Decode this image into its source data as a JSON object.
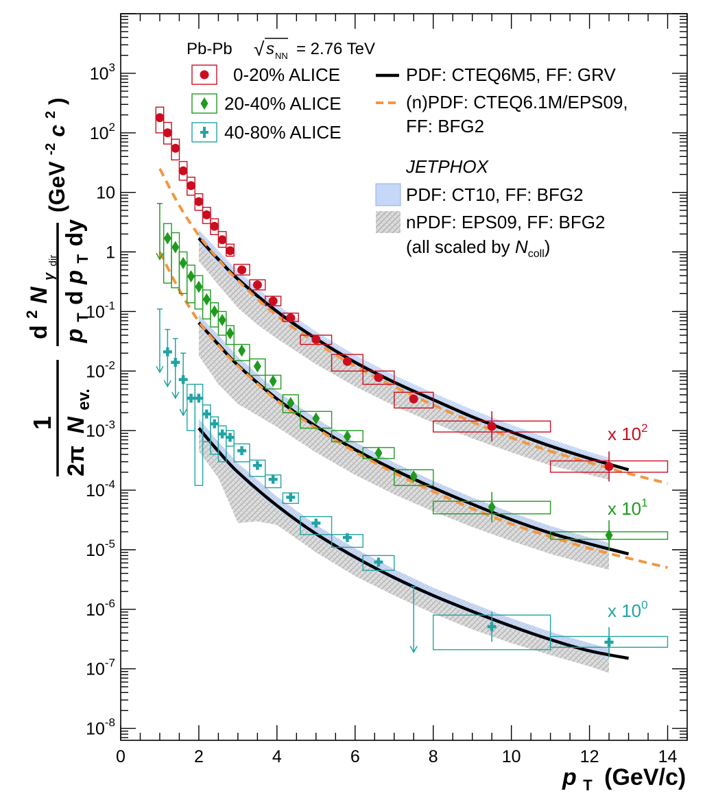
{
  "chart_data": {
    "type": "scatter",
    "title": "",
    "xlabel": "pT (GeV/c)",
    "xlabel_main": "p",
    "xlabel_sub": "T",
    "xlabel_unit": "(GeV/c)",
    "ylabel": "1/(2π Nev.) d²Nγdir/(pT dpT dy) (GeV⁻²c²)",
    "ylabel_pieces": {
      "frac_one": "1",
      "two_pi": "2π",
      "nev_N": "N",
      "nev_sub": "ev.",
      "d2": "d",
      "d2_sup": "2",
      "N": "N",
      "gamma_sub": "γ",
      "dir_sub": "dir",
      "pt_p": "p",
      "pt_T": "T",
      "dpt_d": "d",
      "dy": "dy",
      "unit": "(GeV",
      "unit_exp": "-2",
      "unit_c": "c",
      "unit_c_exp": "2",
      "unit_close": ")"
    },
    "xlim": [
      0,
      14.5
    ],
    "ylim_log10": [
      -8.2,
      4.0
    ],
    "x_ticks": [
      0,
      2,
      4,
      6,
      8,
      10,
      12,
      14
    ],
    "y_ticks": [
      {
        "base": "10",
        "exp": "-8",
        "value": -8
      },
      {
        "base": "10",
        "exp": "-7",
        "value": -7
      },
      {
        "base": "10",
        "exp": "-6",
        "value": -6
      },
      {
        "base": "10",
        "exp": "-5",
        "value": -5
      },
      {
        "base": "10",
        "exp": "-4",
        "value": -4
      },
      {
        "base": "10",
        "exp": "-3",
        "value": -3
      },
      {
        "base": "10",
        "exp": "-2",
        "value": -2
      },
      {
        "base": "10",
        "exp": "-1",
        "value": -1
      },
      {
        "base": "1",
        "exp": "",
        "value": 0
      },
      {
        "base": "10",
        "exp": "",
        "value": 1
      },
      {
        "base": "10",
        "exp": "2",
        "value": 2
      },
      {
        "base": "10",
        "exp": "3",
        "value": 3
      }
    ],
    "colors": {
      "c0020": "#cc0d1f",
      "c2040": "#1f9a1f",
      "c4080": "#20a3a3",
      "cteq": "#000000",
      "eps": "#f29640",
      "band_ct10": "#9bb8f0",
      "band_eps09": "#b9b9b9"
    },
    "header": {
      "system": "Pb-Pb",
      "sqrt": "√",
      "s": "s",
      "s_sub": "NN",
      "energy": "= 2.76 TeV"
    },
    "legend_data": [
      {
        "key": "c0020",
        "label": "0-20% ALICE",
        "marker": "circle"
      },
      {
        "key": "c2040",
        "label": "20-40% ALICE",
        "marker": "diamond"
      },
      {
        "key": "c4080",
        "label": "40-80% ALICE",
        "marker": "cross"
      }
    ],
    "legend_theory": {
      "cteq": "PDF: CTEQ6M5, FF: GRV",
      "eps_line1": "(n)PDF: CTEQ6.1M/EPS09,",
      "eps_line2": "FF: BFG2",
      "jetphox": "JETPHOX",
      "ct10": "PDF: CT10, FF: BFG2",
      "eps09": "nPDF: EPS09, FF: BFG2",
      "scaled_prefix": "(all scaled by ",
      "scaled_N": "N",
      "scaled_sub": "coll",
      "scaled_suffix": ")"
    },
    "scale_labels": [
      {
        "key": "c0020",
        "base": "x 10",
        "exp": "2",
        "value_at_label": -2.8
      },
      {
        "key": "c2040",
        "base": "x 10",
        "exp": "1",
        "value_at_label": -4.35
      },
      {
        "key": "c4080",
        "base": "x 10",
        "exp": "0",
        "value_at_label": -5.85
      }
    ],
    "series": [
      {
        "name": "0-20% ALICE (x 10^2)",
        "key": "c0020",
        "marker": "circle",
        "x": [
          1.0,
          1.2,
          1.4,
          1.6,
          1.8,
          2.0,
          2.2,
          2.4,
          2.6,
          2.8,
          3.1,
          3.5,
          3.9,
          4.35,
          5.0,
          5.8,
          6.6,
          7.5,
          9.5,
          12.5
        ],
        "half_bin": [
          0.1,
          0.1,
          0.1,
          0.1,
          0.1,
          0.1,
          0.1,
          0.1,
          0.1,
          0.1,
          0.2,
          0.2,
          0.2,
          0.2,
          0.4,
          0.4,
          0.4,
          0.5,
          1.5,
          1.5
        ],
        "y": [
          180,
          100,
          55,
          23,
          13,
          7.0,
          4.2,
          2.7,
          1.6,
          1.05,
          0.5,
          0.28,
          0.15,
          0.078,
          0.034,
          0.0145,
          0.0078,
          0.0034,
          0.00118,
          0.00025
        ],
        "sys_lo": [
          100,
          65,
          35,
          16,
          9.0,
          5.0,
          3.0,
          1.95,
          1.2,
          0.85,
          0.41,
          0.23,
          0.125,
          0.068,
          0.028,
          0.01,
          0.006,
          0.0024,
          0.00095,
          0.0002
        ],
        "sys_hi": [
          270,
          150,
          78,
          33,
          18,
          9.5,
          5.6,
          3.6,
          2.2,
          1.35,
          0.62,
          0.34,
          0.18,
          0.094,
          0.04,
          0.019,
          0.01,
          0.0044,
          0.00145,
          0.00031
        ]
      },
      {
        "name": "20-40% ALICE (x 10^1)",
        "key": "c2040",
        "marker": "diamond",
        "x": [
          1.0,
          1.2,
          1.4,
          1.6,
          1.8,
          2.0,
          2.2,
          2.4,
          2.6,
          2.8,
          3.1,
          3.5,
          3.9,
          4.35,
          5.0,
          5.8,
          6.6,
          7.5,
          9.5,
          12.5
        ],
        "half_bin": [
          0.1,
          0.1,
          0.1,
          0.1,
          0.1,
          0.1,
          0.1,
          0.1,
          0.1,
          0.1,
          0.2,
          0.2,
          0.2,
          0.2,
          0.4,
          0.4,
          0.4,
          0.5,
          1.5,
          1.5
        ],
        "y": [
          null,
          1.7,
          1.2,
          0.65,
          0.39,
          0.26,
          0.16,
          0.1,
          0.072,
          0.043,
          0.022,
          0.012,
          0.0068,
          0.0029,
          0.0016,
          0.0008,
          0.00042,
          0.00017,
          5.2e-05,
          1.75e-05
        ],
        "sys_lo": [
          null,
          0.3,
          0.25,
          0.2,
          0.14,
          0.11,
          0.075,
          0.055,
          0.04,
          0.028,
          0.015,
          0.0085,
          0.005,
          0.002,
          0.0011,
          0.00065,
          0.00034,
          0.00012,
          4e-05,
          1.5e-05
        ],
        "sys_hi": [
          null,
          3.0,
          2.1,
          1.0,
          0.6,
          0.4,
          0.23,
          0.14,
          0.1,
          0.058,
          0.028,
          0.016,
          0.0085,
          0.004,
          0.0021,
          0.001,
          0.00052,
          0.00022,
          6.5e-05,
          2e-05
        ],
        "upper_limits": [
          {
            "x": 1.0,
            "from": 6.5,
            "to": 0.75
          }
        ]
      },
      {
        "name": "40-80% ALICE (x 10^0)",
        "key": "c4080",
        "marker": "cross",
        "x": [
          1.0,
          1.2,
          1.4,
          1.6,
          1.8,
          2.0,
          2.2,
          2.4,
          2.6,
          2.8,
          3.1,
          3.5,
          3.9,
          4.35,
          5.0,
          5.8,
          6.6,
          7.5,
          9.5,
          12.5
        ],
        "half_bin": [
          0.1,
          0.1,
          0.1,
          0.1,
          0.1,
          0.1,
          0.1,
          0.1,
          0.1,
          0.1,
          0.2,
          0.2,
          0.2,
          0.2,
          0.4,
          0.4,
          0.4,
          0.5,
          1.5,
          1.5
        ],
        "y": [
          null,
          0.021,
          0.014,
          0.0072,
          0.0035,
          0.0035,
          0.0019,
          0.0013,
          0.00088,
          0.00077,
          0.00046,
          0.00026,
          0.000152,
          7.6e-05,
          2.8e-05,
          1.6e-05,
          6.2e-06,
          null,
          5.1e-07,
          2.8e-07
        ],
        "sys_lo": [
          null,
          null,
          null,
          null,
          0.001,
          0.00012,
          0.00065,
          0.0004,
          0.0003,
          0.00055,
          0.0003,
          0.00017,
          0.00011,
          6e-05,
          1.8e-05,
          1.1e-05,
          4.5e-06,
          null,
          2.1e-07,
          2.3e-07
        ],
        "sys_hi": [
          null,
          null,
          null,
          null,
          0.006,
          0.006,
          0.0027,
          0.0017,
          0.0012,
          0.001,
          0.0006,
          0.00032,
          0.00018,
          9e-05,
          3.6e-05,
          1.8e-05,
          8e-06,
          null,
          8e-07,
          3.5e-07
        ],
        "upper_limits": [
          {
            "x": 1.0,
            "from": 0.11,
            "to": 0.0095
          },
          {
            "x": 1.2,
            "from": 0.05,
            "to": 0.0055
          },
          {
            "x": 1.4,
            "from": 0.035,
            "to": 0.0035
          },
          {
            "x": 1.6,
            "from": 0.02,
            "to": 0.0018
          },
          {
            "x": 7.5,
            "from": 2.4e-06,
            "to": 1.9e-07
          }
        ]
      }
    ],
    "theory": [
      {
        "name": "CTEQ6M5 GRV x10^2",
        "style": "cteq",
        "x": [
          2.0,
          2.5,
          3,
          4,
          5,
          6,
          7,
          8,
          9,
          10,
          11,
          12,
          13
        ],
        "y": [
          1.7,
          0.75,
          0.35,
          0.1,
          0.035,
          0.014,
          0.0065,
          0.0033,
          0.0017,
          0.00095,
          0.00055,
          0.00034,
          0.00022
        ]
      },
      {
        "name": "CTEQ6M5 GRV x10^1",
        "style": "cteq",
        "x": [
          2.0,
          2.5,
          3,
          4,
          5,
          6,
          7,
          8,
          9,
          10,
          11,
          12,
          13
        ],
        "y": [
          0.065,
          0.028,
          0.0125,
          0.0034,
          0.00118,
          0.00048,
          0.00022,
          0.00011,
          5.8e-05,
          3.2e-05,
          1.9e-05,
          1.25e-05,
          8.5e-06
        ]
      },
      {
        "name": "CTEQ6M5 GRV x10^0",
        "style": "cteq",
        "x": [
          2.0,
          2.5,
          3,
          4,
          5,
          6,
          7,
          8,
          9,
          10,
          11,
          12,
          13
        ],
        "y": [
          0.0011,
          0.00045,
          0.0002,
          5.5e-05,
          1.85e-05,
          7.5e-06,
          3.4e-06,
          1.7e-06,
          9.2e-07,
          5.2e-07,
          3.1e-07,
          2e-07,
          1.5e-07
        ]
      },
      {
        "name": "CTEQ6.1M/EPS09 BFG2 x10^2",
        "style": "eps",
        "x": [
          1.0,
          1.5,
          2.0,
          2.5,
          3,
          4,
          5,
          6,
          7,
          8,
          9,
          10,
          11,
          12,
          13,
          14
        ],
        "y": [
          25,
          6,
          1.9,
          0.75,
          0.33,
          0.085,
          0.03,
          0.012,
          0.0055,
          0.0027,
          0.0014,
          0.00076,
          0.00045,
          0.00029,
          0.00019,
          0.00013
        ]
      },
      {
        "name": "CTEQ6.1M/EPS09 BFG2 x10^1",
        "style": "eps",
        "x": [
          1.0,
          1.5,
          2.0,
          2.5,
          3,
          4,
          5,
          6,
          7,
          8,
          9,
          10,
          11,
          12,
          13,
          14
        ],
        "y": [
          1.0,
          0.23,
          0.068,
          0.027,
          0.0122,
          0.0032,
          0.0011,
          0.00044,
          0.000195,
          9.5e-05,
          4.9e-05,
          2.7e-05,
          1.65e-05,
          1.05e-05,
          7.2e-06,
          5e-06
        ]
      }
    ],
    "bands": [
      {
        "name": "CT10 BFG2 x10^2",
        "style": "band_ct10",
        "x": [
          2.0,
          2.5,
          3,
          4,
          5,
          6,
          7,
          8,
          9,
          10,
          11,
          12,
          12.5
        ],
        "lo": [
          1.4,
          0.6,
          0.28,
          0.08,
          0.028,
          0.0115,
          0.0054,
          0.0028,
          0.0015,
          0.00085,
          0.0005,
          0.00031,
          0.00025
        ],
        "hi": [
          2.4,
          1.05,
          0.48,
          0.13,
          0.046,
          0.0185,
          0.0085,
          0.0043,
          0.00225,
          0.00125,
          0.00072,
          0.00044,
          0.00035
        ]
      },
      {
        "name": "CT10 BFG2 x10^1",
        "style": "band_ct10",
        "x": [
          2.0,
          2.5,
          3,
          4,
          5,
          6,
          7,
          8,
          9,
          10,
          11,
          12,
          12.5
        ],
        "lo": [
          0.055,
          0.024,
          0.0108,
          0.003,
          0.00104,
          0.00043,
          0.000198,
          9.9e-05,
          5.3e-05,
          2.9e-05,
          1.75e-05,
          1.15e-05,
          9.5e-06
        ],
        "hi": [
          0.09,
          0.04,
          0.0175,
          0.0046,
          0.0016,
          0.00064,
          0.00029,
          0.000143,
          7.5e-05,
          4.2e-05,
          2.5e-05,
          1.6e-05,
          1.3e-05
        ]
      },
      {
        "name": "CT10 BFG2 x10^0",
        "style": "band_ct10",
        "x": [
          2.0,
          2.5,
          3,
          4,
          5,
          6,
          7,
          8,
          9,
          10,
          11,
          12,
          12.5
        ],
        "lo": [
          0.0009,
          0.00037,
          0.000165,
          4.7e-05,
          1.6e-05,
          6.6e-06,
          3e-06,
          1.5e-06,
          8.2e-07,
          4.6e-07,
          2.8e-07,
          1.8e-07,
          1.5e-07
        ],
        "hi": [
          0.0016,
          0.00065,
          0.000285,
          7.8e-05,
          2.6e-05,
          1.05e-05,
          4.7e-06,
          2.3e-06,
          1.25e-06,
          7e-07,
          4.2e-07,
          2.7e-07,
          2.2e-07
        ]
      },
      {
        "name": "EPS09 BFG2 x10^2",
        "style": "band_eps09",
        "x": [
          2.0,
          2.5,
          3,
          3.5,
          4,
          5,
          6,
          7,
          8,
          9,
          10,
          11,
          12,
          12.5
        ],
        "lo": [
          0.7,
          0.28,
          0.115,
          0.06,
          0.035,
          0.013,
          0.0055,
          0.0026,
          0.00135,
          0.00074,
          0.00043,
          0.00026,
          0.00018,
          0.00015
        ],
        "hi": [
          2.2,
          0.95,
          0.42,
          0.22,
          0.115,
          0.04,
          0.016,
          0.0072,
          0.0036,
          0.0019,
          0.00105,
          0.00062,
          0.00039,
          0.00032
        ]
      },
      {
        "name": "EPS09 BFG2 x10^1",
        "style": "band_eps09",
        "x": [
          2.0,
          2.5,
          3,
          3.5,
          4,
          5,
          6,
          7,
          8,
          9,
          10,
          11,
          12,
          12.5
        ],
        "lo": [
          0.018,
          0.006,
          0.0028,
          0.0018,
          0.00115,
          0.00043,
          0.00018,
          8.5e-05,
          4.4e-05,
          2.4e-05,
          1.4e-05,
          8.5e-06,
          5.6e-06,
          4.6e-06
        ],
        "hi": [
          0.085,
          0.038,
          0.017,
          0.0085,
          0.0046,
          0.0016,
          0.00064,
          0.00029,
          0.000143,
          7.5e-05,
          4.2e-05,
          2.5e-05,
          1.6e-05,
          1.3e-05
        ]
      },
      {
        "name": "EPS09 BFG2 x10^0",
        "style": "band_eps09",
        "x": [
          2.0,
          2.5,
          3,
          3.5,
          4,
          5,
          6,
          7,
          8,
          9,
          10,
          11,
          12,
          12.5
        ],
        "lo": [
          0.00045,
          0.00016,
          2.8e-05,
          3e-05,
          2.6e-05,
          9e-06,
          3.6e-06,
          1.7e-06,
          8.5e-07,
          4.6e-07,
          2.7e-07,
          1.7e-07,
          1.1e-07,
          8.5e-08
        ],
        "hi": [
          0.0015,
          0.00064,
          0.00028,
          0.000145,
          7.8e-05,
          2.6e-05,
          1.05e-05,
          4.7e-06,
          2.3e-06,
          1.25e-06,
          7e-07,
          4.2e-07,
          2.7e-07,
          2.2e-07
        ]
      }
    ]
  }
}
